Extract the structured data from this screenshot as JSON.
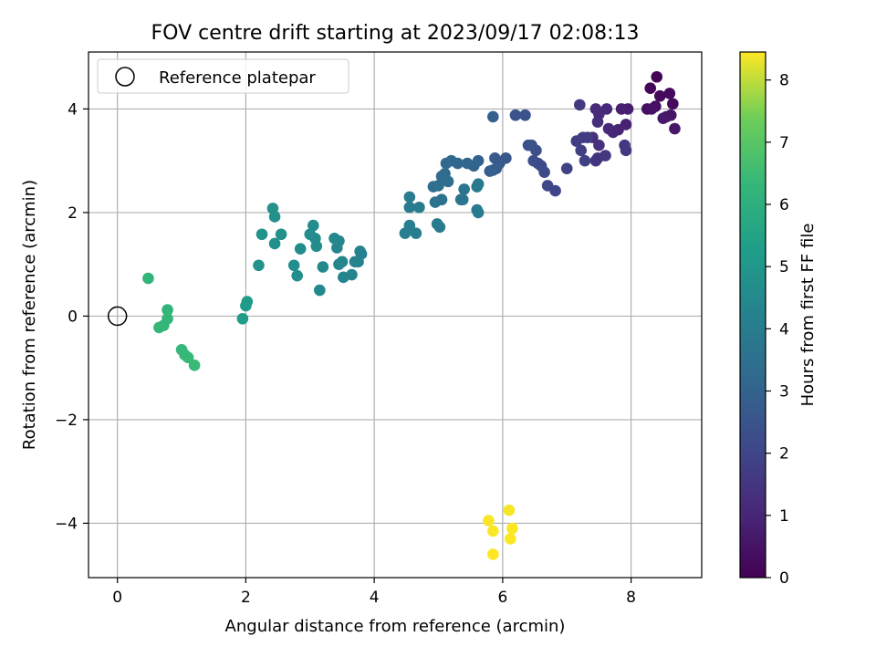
{
  "chart_data": {
    "type": "scatter",
    "title": "FOV centre drift starting at 2023/09/17 02:08:13",
    "xlabel": "Angular distance from reference (arcmin)",
    "ylabel": "Rotation from reference (arcmin)",
    "xlim": [
      -0.45,
      9.1
    ],
    "ylim": [
      -5.05,
      5.1
    ],
    "xticks": [
      0,
      2,
      4,
      6,
      8
    ],
    "yticks": [
      -4,
      -2,
      0,
      2,
      4
    ],
    "xtick_labels": [
      "0",
      "2",
      "4",
      "6",
      "8"
    ],
    "ytick_labels": [
      "−4",
      "−2",
      "0",
      "2",
      "4"
    ],
    "grid": true,
    "legend": {
      "position": "top-left",
      "label": "Reference platepar"
    },
    "reference_point": {
      "x": 0,
      "y": 0,
      "marker": "open-circle",
      "color": "#000000"
    },
    "colorbar": {
      "label": "Hours from first FF file",
      "range": [
        0,
        8.45
      ],
      "ticks": [
        0,
        1,
        2,
        3,
        4,
        5,
        6,
        7,
        8
      ],
      "tick_labels": [
        "0",
        "1",
        "2",
        "3",
        "4",
        "5",
        "6",
        "7",
        "8"
      ],
      "colormap": "viridis"
    },
    "series": [
      {
        "color_value": "hours",
        "points": [
          [
            8.4,
            4.62,
            0.1
          ],
          [
            8.3,
            4.4,
            0.15
          ],
          [
            8.45,
            4.25,
            0.2
          ],
          [
            8.6,
            4.3,
            0.25
          ],
          [
            8.65,
            4.1,
            0.3
          ],
          [
            8.38,
            4.05,
            0.35
          ],
          [
            8.25,
            4.0,
            0.4
          ],
          [
            8.32,
            4.0,
            0.45
          ],
          [
            8.55,
            3.85,
            0.5
          ],
          [
            8.62,
            3.88,
            0.55
          ],
          [
            8.68,
            3.62,
            0.6
          ],
          [
            8.5,
            3.82,
            0.65
          ],
          [
            7.95,
            4.0,
            0.8
          ],
          [
            7.85,
            4.0,
            0.85
          ],
          [
            7.92,
            3.7,
            0.9
          ],
          [
            7.8,
            3.6,
            0.95
          ],
          [
            7.72,
            3.55,
            1.0
          ],
          [
            7.65,
            3.62,
            1.05
          ],
          [
            7.62,
            4.0,
            1.1
          ],
          [
            7.45,
            4.0,
            1.15
          ],
          [
            7.5,
            3.9,
            1.2
          ],
          [
            7.48,
            3.75,
            1.25
          ],
          [
            7.4,
            3.45,
            1.3
          ],
          [
            7.5,
            3.3,
            1.35
          ],
          [
            7.45,
            3.0,
            1.4
          ],
          [
            7.48,
            3.05,
            1.45
          ],
          [
            7.6,
            3.1,
            1.5
          ],
          [
            7.9,
            3.3,
            1.55
          ],
          [
            7.92,
            3.2,
            1.6
          ],
          [
            7.2,
            4.08,
            1.6
          ],
          [
            7.25,
            3.45,
            1.65
          ],
          [
            7.32,
            3.45,
            1.7
          ],
          [
            7.15,
            3.38,
            1.75
          ],
          [
            7.22,
            3.2,
            1.8
          ],
          [
            7.28,
            3.0,
            1.85
          ],
          [
            7.0,
            2.85,
            1.9
          ],
          [
            6.82,
            2.42,
            2.0
          ],
          [
            6.7,
            2.52,
            2.05
          ],
          [
            6.65,
            2.78,
            2.1
          ],
          [
            6.6,
            2.9,
            2.15
          ],
          [
            6.55,
            2.95,
            2.2
          ],
          [
            6.48,
            3.0,
            2.25
          ],
          [
            6.52,
            3.2,
            2.3
          ],
          [
            6.45,
            3.3,
            2.35
          ],
          [
            6.4,
            3.3,
            2.4
          ],
          [
            6.35,
            3.88,
            2.45
          ],
          [
            6.2,
            3.88,
            2.5
          ],
          [
            6.05,
            3.05,
            2.6
          ],
          [
            5.88,
            3.05,
            2.65
          ],
          [
            5.95,
            2.95,
            2.7
          ],
          [
            5.85,
            2.82,
            2.75
          ],
          [
            5.9,
            2.85,
            2.8
          ],
          [
            5.8,
            2.8,
            2.85
          ],
          [
            5.85,
            3.85,
            2.9
          ],
          [
            5.62,
            3.0,
            3.0
          ],
          [
            5.55,
            2.9,
            3.05
          ],
          [
            5.45,
            2.95,
            3.1
          ],
          [
            5.3,
            2.95,
            3.15
          ],
          [
            5.2,
            3.0,
            3.2
          ],
          [
            5.12,
            2.95,
            3.25
          ],
          [
            5.1,
            2.75,
            3.3
          ],
          [
            5.05,
            2.7,
            3.35
          ],
          [
            5.15,
            2.6,
            3.4
          ],
          [
            5.0,
            2.52,
            3.45
          ],
          [
            4.92,
            2.5,
            3.5
          ],
          [
            5.05,
            2.25,
            3.55
          ],
          [
            4.95,
            2.2,
            3.6
          ],
          [
            5.35,
            2.25,
            3.65
          ],
          [
            5.4,
            2.45,
            3.7
          ],
          [
            5.38,
            2.25,
            3.75
          ],
          [
            5.6,
            2.5,
            3.8
          ],
          [
            5.62,
            2.55,
            3.85
          ],
          [
            5.6,
            2.05,
            3.9
          ],
          [
            5.62,
            2.0,
            3.95
          ],
          [
            5.02,
            1.72,
            3.9
          ],
          [
            4.98,
            1.78,
            3.92
          ],
          [
            4.7,
            2.1,
            3.95
          ],
          [
            4.55,
            2.3,
            3.97
          ],
          [
            4.55,
            2.1,
            4.0
          ],
          [
            4.55,
            1.75,
            4.02
          ],
          [
            4.65,
            1.6,
            4.05
          ],
          [
            4.48,
            1.6,
            4.07
          ],
          [
            3.78,
            1.25,
            4.2
          ],
          [
            3.8,
            1.2,
            4.22
          ],
          [
            3.75,
            1.05,
            4.25
          ],
          [
            3.7,
            1.05,
            4.28
          ],
          [
            3.65,
            0.8,
            4.3
          ],
          [
            3.52,
            0.75,
            4.32
          ],
          [
            3.5,
            1.05,
            4.35
          ],
          [
            3.45,
            1.0,
            4.38
          ],
          [
            3.42,
            1.32,
            4.4
          ],
          [
            3.45,
            1.45,
            4.42
          ],
          [
            3.38,
            1.5,
            4.45
          ],
          [
            3.2,
            0.95,
            4.48
          ],
          [
            3.15,
            0.5,
            4.5
          ],
          [
            3.1,
            1.35,
            4.55
          ],
          [
            3.08,
            1.5,
            4.57
          ],
          [
            3.0,
            1.58,
            4.6
          ],
          [
            3.05,
            1.75,
            4.62
          ],
          [
            2.85,
            1.3,
            4.65
          ],
          [
            2.75,
            0.98,
            4.68
          ],
          [
            2.8,
            0.78,
            4.7
          ],
          [
            2.55,
            1.58,
            4.75
          ],
          [
            2.45,
            1.4,
            4.78
          ],
          [
            2.45,
            1.92,
            4.8
          ],
          [
            2.42,
            2.08,
            4.82
          ],
          [
            2.25,
            1.58,
            4.85
          ],
          [
            2.2,
            0.98,
            4.88
          ],
          [
            2.02,
            0.28,
            5.2
          ],
          [
            2.0,
            0.2,
            5.22
          ],
          [
            1.95,
            -0.05,
            5.25
          ],
          [
            0.48,
            0.73,
            6.2
          ],
          [
            0.78,
            0.12,
            6.25
          ],
          [
            0.78,
            -0.05,
            6.28
          ],
          [
            0.72,
            -0.18,
            6.3
          ],
          [
            0.65,
            -0.22,
            6.32
          ],
          [
            1.0,
            -0.65,
            6.35
          ],
          [
            1.05,
            -0.75,
            6.38
          ],
          [
            1.1,
            -0.8,
            6.4
          ],
          [
            1.2,
            -0.95,
            6.42
          ],
          [
            6.1,
            -3.75,
            8.4
          ],
          [
            5.78,
            -3.95,
            8.42
          ],
          [
            5.85,
            -4.15,
            8.43
          ],
          [
            6.15,
            -4.1,
            8.44
          ],
          [
            6.12,
            -4.3,
            8.45
          ],
          [
            5.85,
            -4.6,
            8.45
          ]
        ]
      }
    ]
  }
}
